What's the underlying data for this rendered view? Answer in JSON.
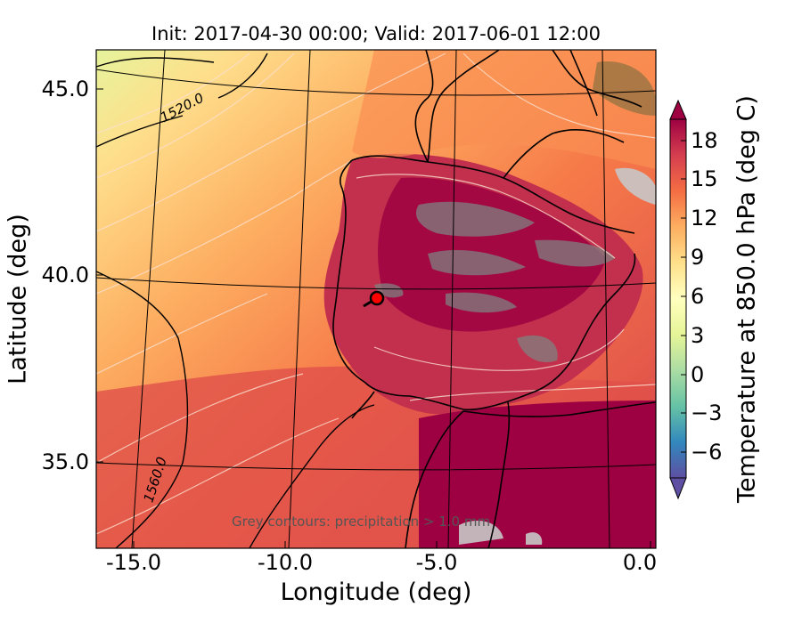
{
  "chart_data": {
    "type": "heatmap",
    "title": "Init: 2017-04-30 00:00; Valid: 2017-06-01 12:00",
    "xlabel": "Longitude (deg)",
    "ylabel": "Latitude (deg)",
    "x_ticks": [
      "-15.0",
      "-10.0",
      "-5.0",
      "0.0"
    ],
    "y_ticks": [
      "45.0",
      "40.0",
      "35.0"
    ],
    "xlim": [
      -16,
      0.1
    ],
    "ylim": [
      32.5,
      46
    ],
    "colorbar": {
      "label": "Temperature at 850.0 hPa (deg C)",
      "ticks": [
        "18",
        "15",
        "12",
        "9",
        "6",
        "3",
        "0",
        "−3",
        "−6"
      ],
      "range": [
        -8,
        20
      ],
      "colormap": "Spectral_r",
      "extend": "both"
    },
    "contour_labels": [
      "1520.0",
      "1560.0"
    ],
    "annotation": "Grey contours: precipitation > 1.0 mm",
    "marker": {
      "lon": -7.6,
      "lat": 39.4,
      "color": "#ff0000"
    }
  },
  "colors": {
    "cold_yellow": "#e8f5a0",
    "warm_orange": "#f99a55",
    "hot_red": "#d94a4a",
    "dark_red": "#9e0142"
  }
}
